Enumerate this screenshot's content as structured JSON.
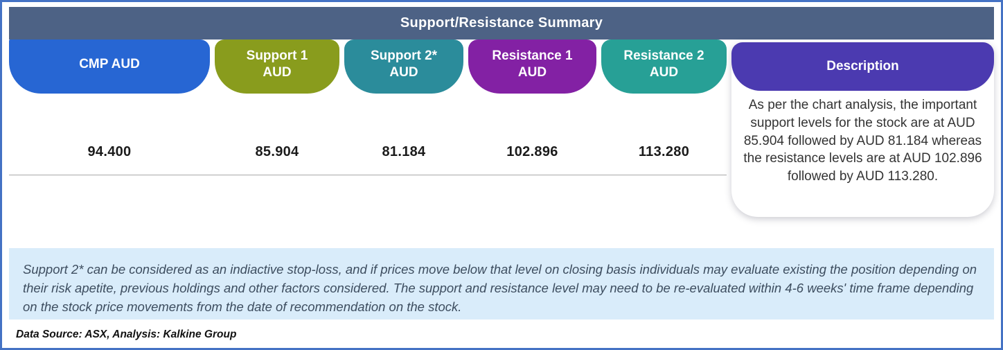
{
  "header": {
    "title": "Support/Resistance Summary"
  },
  "table": {
    "columns": [
      {
        "label": "CMP AUD",
        "value": "94.400",
        "color": "#2766d3"
      },
      {
        "label": "Support 1 AUD",
        "value": "85.904",
        "color": "#899c1d"
      },
      {
        "label": "Support 2* AUD",
        "value": "81.184",
        "color": "#2b8c9b"
      },
      {
        "label": "Resistance 1 AUD",
        "value": "102.896",
        "color": "#8321a4"
      },
      {
        "label": "Resistance 2 AUD",
        "value": "113.280",
        "color": "#27a096"
      }
    ],
    "description": {
      "label": "Description",
      "color": "#4b3ab0",
      "text": "As per the chart analysis, the important support levels for the stock are at AUD 85.904 followed by AUD 81.184 whereas the resistance levels are at AUD 102.896 followed by AUD 113.280."
    }
  },
  "note": "Support 2* can be considered as an indiactive stop-loss, and if prices move below that level on closing basis individuals may evaluate existing the position depending on their risk apetite, previous holdings and other factors considered. The support and resistance level may need to be re-evaluated within 4-6 weeks' time frame depending on the stock price movements from  the date of recommendation on the stock.",
  "footer": "Data Source: ASX, Analysis: Kalkine Group",
  "colors": {
    "outer_border": "#4472c4",
    "titlebar_bg": "#4d6285",
    "note_bg": "#d9ecfa",
    "divider": "#a8a8a8"
  }
}
